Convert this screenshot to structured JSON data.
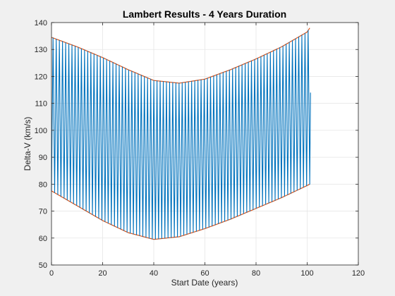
{
  "chart_data": {
    "type": "line",
    "title": "Lambert Results - 4 Years Duration",
    "xlabel": "Start Date (years)",
    "ylabel": "Delta-V (km/s)",
    "xlim": [
      0,
      120
    ],
    "ylim": [
      50,
      140
    ],
    "xticks": [
      0,
      20,
      40,
      60,
      80,
      100,
      120
    ],
    "yticks": [
      50,
      60,
      70,
      80,
      90,
      100,
      110,
      120,
      130,
      140
    ],
    "grid": true,
    "legend": "none",
    "colors": {
      "series": "#0072bd",
      "envelope": "#d95319",
      "grid": "#e6e6e6",
      "axes_bg": "#ffffff",
      "figure_bg": "#f0f0f0"
    },
    "series": [
      {
        "description_note": "",
        "oscillation_count": 82,
        "x_range": [
          0,
          101
        ],
        "upper_envelope": {
          "x": [
            0,
            10,
            20,
            30,
            40,
            50,
            60,
            70,
            80,
            90,
            100,
            101
          ],
          "y": [
            134.5,
            131,
            127,
            122.5,
            118.5,
            117.5,
            119,
            122.5,
            126.5,
            131,
            136.5,
            138
          ]
        },
        "lower_envelope": {
          "x": [
            0,
            10,
            20,
            30,
            40,
            50,
            60,
            70,
            80,
            90,
            100,
            101
          ],
          "y": [
            77.5,
            72,
            66.5,
            62,
            59.5,
            60.5,
            63.5,
            67,
            71,
            75,
            79.5,
            80
          ]
        }
      }
    ]
  }
}
